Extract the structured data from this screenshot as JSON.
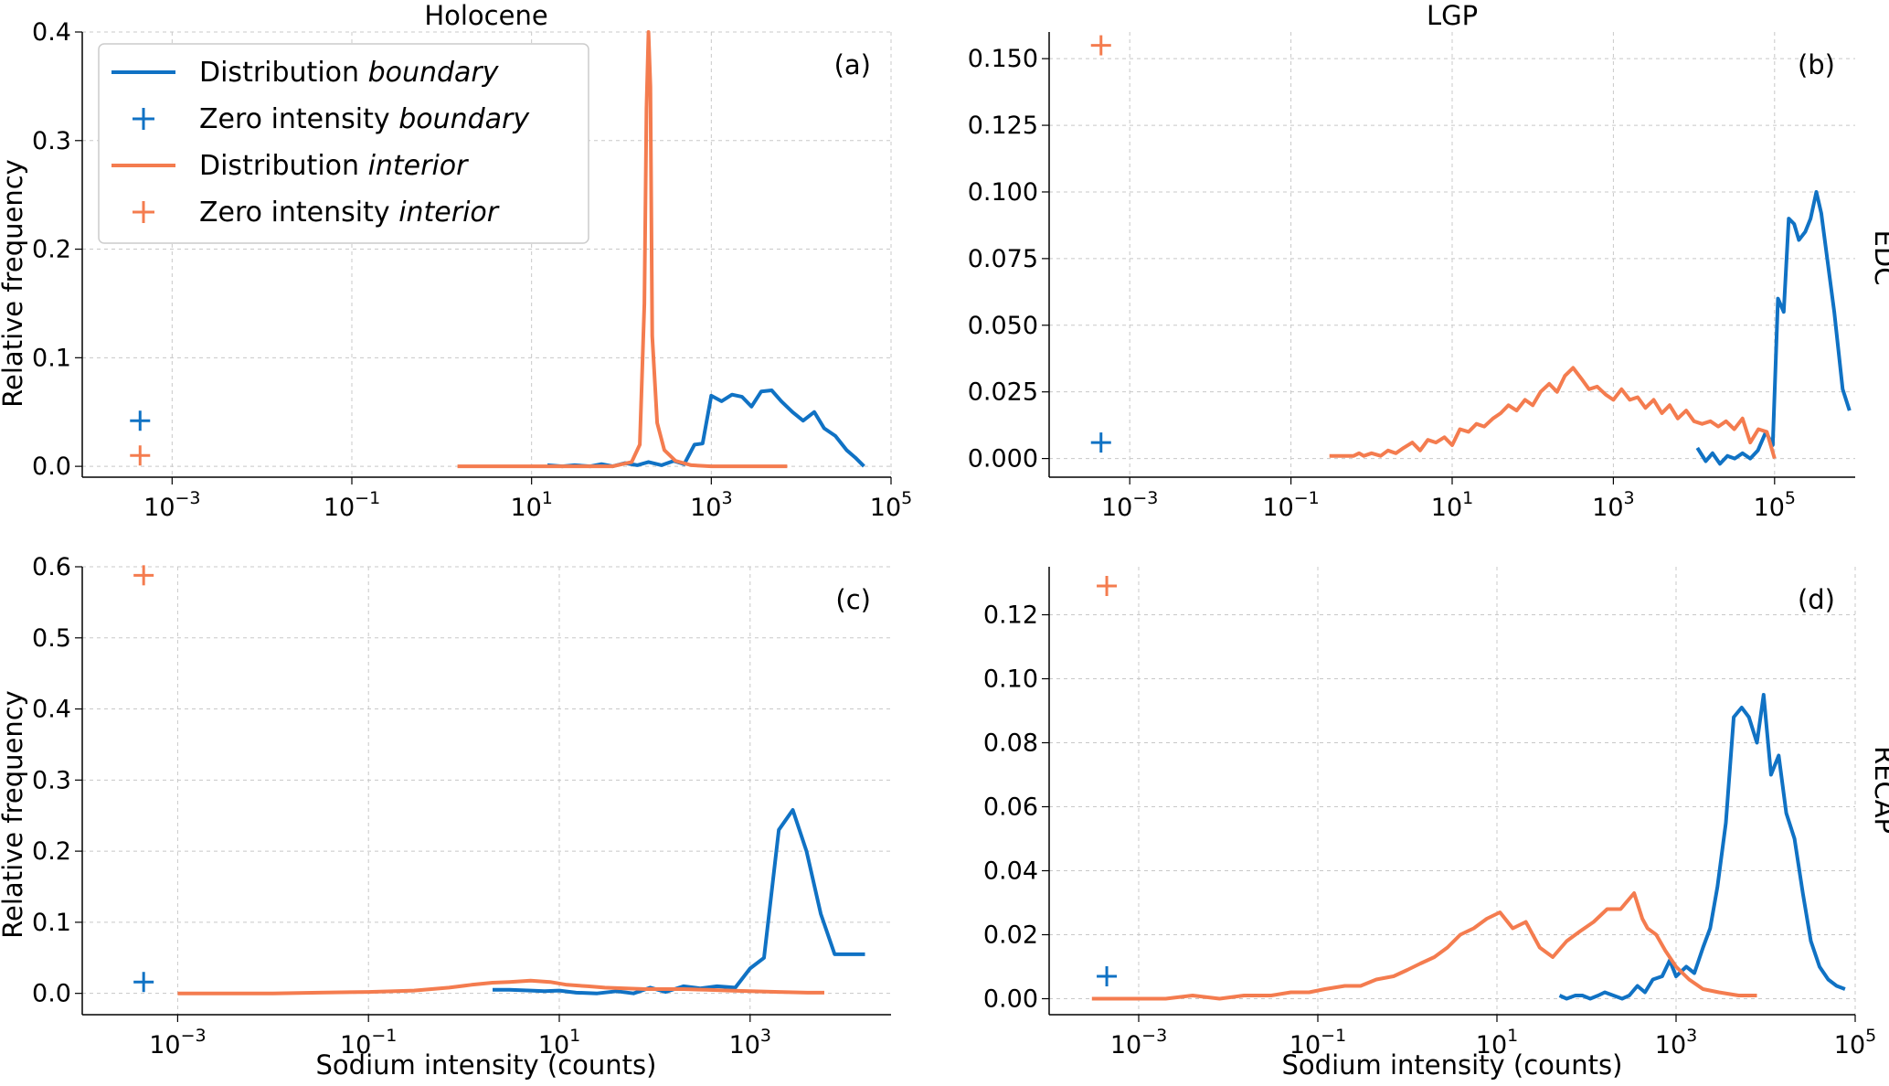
{
  "columns": [
    "Holocene",
    "LGP"
  ],
  "rows": [
    "EDC",
    "RECAP"
  ],
  "xlabel": "Sodium intensity (counts)",
  "ylabel": "Relative frequency",
  "legend": [
    {
      "prefix": "Distribution ",
      "emph": "boundary",
      "style": "line",
      "color": "#1072c4"
    },
    {
      "prefix": "Zero intensity ",
      "emph": "boundary",
      "style": "marker",
      "color": "#1072c4"
    },
    {
      "prefix": "Distribution ",
      "emph": "interior",
      "style": "line",
      "color": "#f47c4f"
    },
    {
      "prefix": "Zero intensity ",
      "emph": "interior",
      "style": "marker",
      "color": "#f47c4f"
    }
  ],
  "colors": {
    "boundary": "#1072c4",
    "interior": "#f47c4f",
    "grid": "#c8c8c8"
  },
  "chart_data": [
    {
      "type": "line",
      "panel": "(a)",
      "column": "Holocene",
      "row": "EDC",
      "xscale": "log",
      "xlim": [
        0.0001,
        100000
      ],
      "ylim": [
        -0.01,
        0.4
      ],
      "xticks": [
        {
          "v": 0.001,
          "e": "−3"
        },
        {
          "v": 0.1,
          "e": "−1"
        },
        {
          "v": 10,
          "e": "1"
        },
        {
          "v": 1000,
          "e": "3"
        },
        {
          "v": 100000,
          "e": "5"
        }
      ],
      "yticks": [
        {
          "v": 0,
          "l": "0.0"
        },
        {
          "v": 0.1,
          "l": "0.1"
        },
        {
          "v": 0.2,
          "l": "0.2"
        },
        {
          "v": 0.3,
          "l": "0.3"
        },
        {
          "v": 0.4,
          "l": "0.4"
        }
      ],
      "zero_intensity": {
        "boundary": 0.042,
        "interior": 0.01
      },
      "series": [
        {
          "key": "boundary",
          "x": [
            15,
            22,
            30,
            45,
            60,
            80,
            110,
            150,
            200,
            280,
            380,
            500,
            650,
            800,
            1000,
            1300,
            1700,
            2200,
            2800,
            3600,
            4700,
            6000,
            8000,
            10500,
            14000,
            18000,
            24000,
            32000,
            40000,
            50000
          ],
          "y": [
            0.001,
            0.0,
            0.001,
            0.0,
            0.002,
            0.0,
            0.003,
            0.001,
            0.004,
            0.001,
            0.005,
            0.002,
            0.02,
            0.021,
            0.065,
            0.06,
            0.066,
            0.064,
            0.055,
            0.069,
            0.07,
            0.06,
            0.05,
            0.042,
            0.05,
            0.035,
            0.028,
            0.015,
            0.008,
            0.0
          ]
        },
        {
          "key": "interior",
          "x": [
            1.5,
            3,
            6,
            10,
            20,
            40,
            80,
            130,
            160,
            180,
            190,
            200,
            210,
            220,
            250,
            300,
            400,
            600,
            1000,
            2000,
            5000,
            7000
          ],
          "y": [
            0.0,
            0.0,
            0.0,
            0.0,
            0.0,
            0.0,
            0.0,
            0.004,
            0.02,
            0.15,
            0.33,
            0.4,
            0.35,
            0.12,
            0.04,
            0.015,
            0.005,
            0.001,
            0.0,
            0.0,
            0.0,
            0.0
          ]
        }
      ]
    },
    {
      "type": "line",
      "panel": "(b)",
      "column": "LGP",
      "row": "EDC",
      "xscale": "log",
      "xlim": [
        0.0001,
        1000000
      ],
      "ylim": [
        -0.007,
        0.16
      ],
      "xticks": [
        {
          "v": 0.001,
          "e": "−3"
        },
        {
          "v": 0.1,
          "e": "−1"
        },
        {
          "v": 10,
          "e": "1"
        },
        {
          "v": 1000,
          "e": "3"
        },
        {
          "v": 100000,
          "e": "5"
        }
      ],
      "yticks": [
        {
          "v": 0,
          "l": "0.000"
        },
        {
          "v": 0.025,
          "l": "0.025"
        },
        {
          "v": 0.05,
          "l": "0.050"
        },
        {
          "v": 0.075,
          "l": "0.075"
        },
        {
          "v": 0.1,
          "l": "0.100"
        },
        {
          "v": 0.125,
          "l": "0.125"
        },
        {
          "v": 0.15,
          "l": "0.150"
        }
      ],
      "zero_intensity": {
        "boundary": 0.006,
        "interior": 0.155
      },
      "series": [
        {
          "key": "boundary",
          "x": [
            11000,
            14000,
            17000,
            21000,
            26000,
            32000,
            40000,
            50000,
            62000,
            78000,
            95000,
            110000,
            130000,
            150000,
            175000,
            200000,
            240000,
            280000,
            330000,
            380000,
            450000,
            550000,
            700000,
            850000
          ],
          "y": [
            0.004,
            -0.001,
            0.002,
            -0.002,
            0.001,
            0.0,
            0.002,
            0.0,
            0.003,
            0.01,
            0.005,
            0.06,
            0.055,
            0.09,
            0.088,
            0.082,
            0.085,
            0.09,
            0.1,
            0.092,
            0.075,
            0.055,
            0.026,
            0.018
          ]
        },
        {
          "key": "interior",
          "x": [
            0.3,
            0.4,
            0.5,
            0.6,
            0.7,
            0.8,
            1.0,
            1.3,
            1.6,
            2.0,
            2.5,
            3.2,
            4.0,
            5.0,
            6.3,
            8.0,
            10,
            12.5,
            16,
            20,
            25,
            32,
            40,
            50,
            63,
            80,
            100,
            125,
            160,
            200,
            250,
            316,
            400,
            500,
            630,
            800,
            1000,
            1260,
            1600,
            2000,
            2500,
            3160,
            4000,
            5000,
            6300,
            8000,
            10000,
            12600,
            16000,
            20000,
            25000,
            31600,
            40000,
            50000,
            63000,
            80000,
            100000
          ],
          "y": [
            0.001,
            0.001,
            0.001,
            0.001,
            0.002,
            0.001,
            0.002,
            0.001,
            0.003,
            0.002,
            0.004,
            0.006,
            0.003,
            0.007,
            0.006,
            0.008,
            0.005,
            0.011,
            0.01,
            0.013,
            0.012,
            0.015,
            0.017,
            0.02,
            0.018,
            0.022,
            0.02,
            0.025,
            0.028,
            0.025,
            0.031,
            0.034,
            0.03,
            0.026,
            0.027,
            0.024,
            0.022,
            0.026,
            0.022,
            0.023,
            0.019,
            0.022,
            0.017,
            0.02,
            0.015,
            0.018,
            0.014,
            0.013,
            0.014,
            0.012,
            0.014,
            0.011,
            0.015,
            0.006,
            0.011,
            0.01,
            0.0
          ]
        }
      ]
    },
    {
      "type": "line",
      "panel": "(c)",
      "column": "Holocene",
      "row": "RECAP",
      "xscale": "log",
      "xlim": [
        0.0001,
        30000
      ],
      "ylim": [
        -0.03,
        0.6
      ],
      "xticks": [
        {
          "v": 0.001,
          "e": "−3"
        },
        {
          "v": 0.1,
          "e": "−1"
        },
        {
          "v": 10,
          "e": "1"
        },
        {
          "v": 1000,
          "e": "3"
        }
      ],
      "yticks": [
        {
          "v": 0,
          "l": "0.0"
        },
        {
          "v": 0.1,
          "l": "0.1"
        },
        {
          "v": 0.2,
          "l": "0.2"
        },
        {
          "v": 0.3,
          "l": "0.3"
        },
        {
          "v": 0.4,
          "l": "0.4"
        },
        {
          "v": 0.5,
          "l": "0.5"
        },
        {
          "v": 0.6,
          "l": "0.6"
        }
      ],
      "zero_intensity": {
        "boundary": 0.016,
        "interior": 0.588
      },
      "series": [
        {
          "key": "boundary",
          "x": [
            2,
            3,
            5,
            7,
            10,
            15,
            25,
            40,
            60,
            90,
            130,
            200,
            300,
            450,
            700,
            1000,
            1400,
            2000,
            2800,
            3900,
            5500,
            7700,
            11000,
            16000
          ],
          "y": [
            0.005,
            0.005,
            0.004,
            0.003,
            0.004,
            0.001,
            0.0,
            0.003,
            0.0,
            0.008,
            0.002,
            0.01,
            0.007,
            0.01,
            0.008,
            0.035,
            0.05,
            0.23,
            0.258,
            0.2,
            0.112,
            0.055,
            0.055,
            0.055
          ]
        },
        {
          "key": "interior",
          "x": [
            0.001,
            0.003,
            0.01,
            0.03,
            0.1,
            0.3,
            0.7,
            1.2,
            2,
            3,
            5,
            8,
            12,
            20,
            30,
            50,
            80,
            130,
            200,
            350,
            600,
            1000,
            2000,
            4000,
            6000
          ],
          "y": [
            0.0,
            0.0,
            0.0,
            0.001,
            0.002,
            0.004,
            0.008,
            0.012,
            0.015,
            0.016,
            0.018,
            0.016,
            0.012,
            0.01,
            0.008,
            0.007,
            0.006,
            0.006,
            0.006,
            0.005,
            0.004,
            0.003,
            0.002,
            0.001,
            0.001
          ]
        }
      ]
    },
    {
      "type": "line",
      "panel": "(d)",
      "column": "LGP",
      "row": "RECAP",
      "xscale": "log",
      "xlim": [
        0.0001,
        100000
      ],
      "ylim": [
        -0.005,
        0.135
      ],
      "xticks": [
        {
          "v": 0.001,
          "e": "−3"
        },
        {
          "v": 0.1,
          "e": "−1"
        },
        {
          "v": 10,
          "e": "1"
        },
        {
          "v": 1000,
          "e": "3"
        },
        {
          "v": 100000,
          "e": "5"
        }
      ],
      "yticks": [
        {
          "v": 0,
          "l": "0.00"
        },
        {
          "v": 0.02,
          "l": "0.02"
        },
        {
          "v": 0.04,
          "l": "0.04"
        },
        {
          "v": 0.06,
          "l": "0.06"
        },
        {
          "v": 0.08,
          "l": "0.08"
        },
        {
          "v": 0.1,
          "l": "0.10"
        },
        {
          "v": 0.12,
          "l": "0.12"
        }
      ],
      "zero_intensity": {
        "boundary": 0.007,
        "interior": 0.129
      },
      "series": [
        {
          "key": "boundary",
          "x": [
            50,
            60,
            75,
            90,
            110,
            135,
            160,
            200,
            250,
            300,
            370,
            450,
            550,
            700,
            850,
            1000,
            1300,
            1600,
            2000,
            2400,
            2900,
            3600,
            4400,
            5400,
            6500,
            8000,
            9500,
            11500,
            14000,
            17000,
            21000,
            26000,
            32000,
            40000,
            50000,
            62000,
            77000
          ],
          "y": [
            0.001,
            0.0,
            0.001,
            0.001,
            0.0,
            0.001,
            0.002,
            0.001,
            0.0,
            0.001,
            0.004,
            0.002,
            0.006,
            0.007,
            0.012,
            0.007,
            0.01,
            0.008,
            0.016,
            0.022,
            0.035,
            0.055,
            0.088,
            0.091,
            0.088,
            0.08,
            0.095,
            0.07,
            0.076,
            0.058,
            0.05,
            0.033,
            0.018,
            0.01,
            0.006,
            0.004,
            0.003
          ]
        },
        {
          "key": "interior",
          "x": [
            0.0003,
            0.0006,
            0.001,
            0.002,
            0.004,
            0.008,
            0.015,
            0.03,
            0.05,
            0.08,
            0.12,
            0.2,
            0.3,
            0.45,
            0.7,
            1.0,
            1.4,
            2.0,
            2.8,
            3.9,
            5.5,
            7.7,
            10.8,
            15,
            21,
            30,
            42,
            60,
            84,
            120,
            170,
            240,
            340,
            420,
            480,
            600,
            760,
            1000,
            1400,
            2000,
            3000,
            5000,
            8000
          ],
          "y": [
            0.0,
            0.0,
            0.0,
            0.0,
            0.001,
            0.0,
            0.001,
            0.001,
            0.002,
            0.002,
            0.003,
            0.004,
            0.004,
            0.006,
            0.007,
            0.009,
            0.011,
            0.013,
            0.016,
            0.02,
            0.022,
            0.025,
            0.027,
            0.022,
            0.024,
            0.016,
            0.013,
            0.018,
            0.021,
            0.024,
            0.028,
            0.028,
            0.033,
            0.025,
            0.022,
            0.02,
            0.015,
            0.01,
            0.006,
            0.003,
            0.002,
            0.001,
            0.001
          ]
        }
      ]
    }
  ],
  "labels": [
    "(a)",
    "(b)",
    "(c)",
    "(d)"
  ]
}
